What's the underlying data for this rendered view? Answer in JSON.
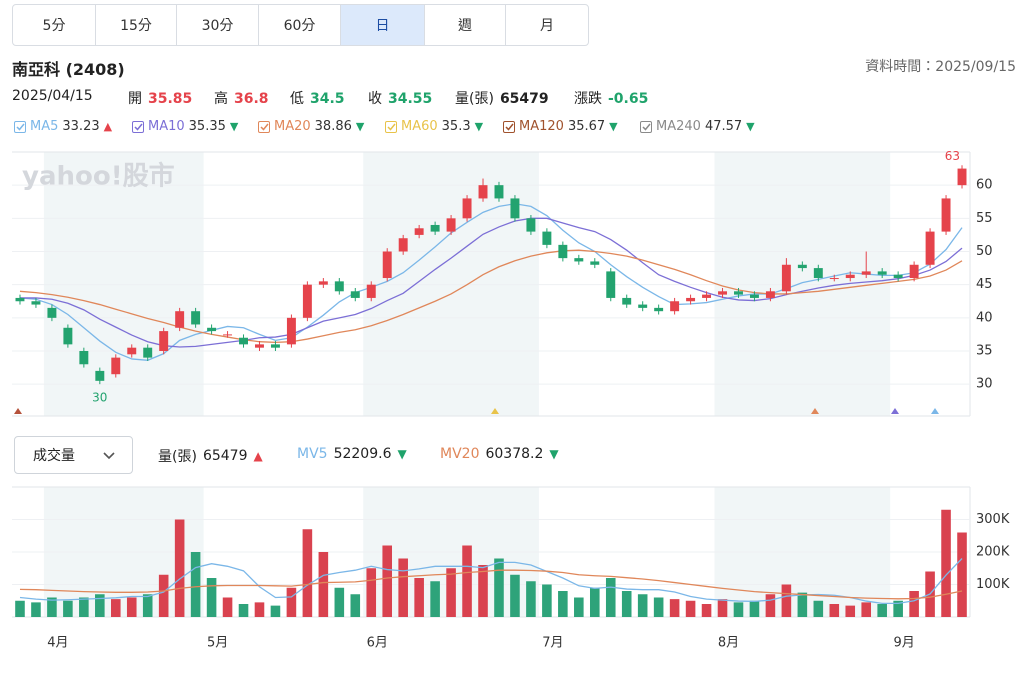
{
  "tabs": [
    {
      "label": "5分"
    },
    {
      "label": "15分"
    },
    {
      "label": "30分"
    },
    {
      "label": "60分"
    },
    {
      "label": "日",
      "active": true
    },
    {
      "label": "週"
    },
    {
      "label": "月"
    }
  ],
  "header": {
    "title": "南亞科 (2408)",
    "data_time": "資料時間：2025/09/15"
  },
  "info": {
    "date": "2025/04/15",
    "items": [
      {
        "label": "開",
        "value": 35.85,
        "color": "#e5434b"
      },
      {
        "label": "高",
        "value": 36.8,
        "color": "#e5434b"
      },
      {
        "label": "低",
        "value": 34.5,
        "color": "#1fa36b"
      },
      {
        "label": "收",
        "value": 34.55,
        "color": "#1fa36b"
      },
      {
        "label": "量(張)",
        "value": 65479,
        "color": "#222222"
      },
      {
        "label": "漲跌",
        "value": -0.65,
        "color": "#1fa36b"
      }
    ]
  },
  "volume_selector": "成交量",
  "chart_data": [
    {
      "type": "candlestick",
      "watermark": "yahoo!股市",
      "up_color": "#e5434b",
      "down_color": "#23a36f",
      "open": [
        43,
        42.5,
        41.5,
        38.5,
        35,
        32,
        31.5,
        34.5,
        35.5,
        35,
        38.5,
        41,
        38.5,
        37.5,
        37,
        35.5,
        36,
        36,
        40,
        45,
        45.5,
        44,
        43,
        46,
        50,
        52.5,
        54,
        53,
        55,
        58,
        60,
        58,
        55,
        53,
        51,
        49,
        48.5,
        47,
        43,
        42,
        41.5,
        41,
        42.5,
        43,
        43.5,
        44,
        43.5,
        43,
        44,
        48,
        47.5,
        46,
        46,
        46.5,
        47,
        46.5,
        46,
        48,
        53,
        60
      ],
      "high": [
        43.5,
        43,
        42,
        39,
        35.5,
        32.5,
        34.5,
        36,
        36,
        38.5,
        41.5,
        41.5,
        39,
        38,
        37.5,
        36.5,
        36.5,
        40.5,
        45.5,
        46,
        46,
        44.5,
        45.5,
        50.5,
        52.5,
        54,
        54.5,
        55.5,
        58.5,
        61,
        60.5,
        58.5,
        55.5,
        53.5,
        51.5,
        49.5,
        49,
        47.5,
        43.5,
        42.5,
        42,
        43,
        43.5,
        44,
        44.5,
        44.5,
        44,
        44.5,
        49,
        48.5,
        48,
        46.5,
        47,
        50,
        47.5,
        47,
        48.5,
        53.5,
        58.5,
        63
      ],
      "low": [
        42,
        41.5,
        39.5,
        35.5,
        32.5,
        30,
        31,
        34,
        33.5,
        34.5,
        38,
        38.5,
        37.5,
        37,
        35.5,
        35,
        35,
        35.5,
        39.5,
        44.5,
        43.5,
        42.5,
        42.5,
        45.5,
        49.5,
        52,
        52.5,
        52.5,
        54.5,
        57.5,
        57.5,
        54.5,
        52.5,
        50.5,
        48.5,
        48,
        47.5,
        42.5,
        41.5,
        41,
        40.5,
        40.5,
        42,
        42.5,
        43,
        43,
        42.5,
        42.5,
        43.5,
        47,
        45.5,
        45.5,
        45.5,
        46,
        46,
        45.5,
        45.5,
        47.5,
        52.5,
        59.5
      ],
      "close": [
        42.5,
        42,
        40,
        36,
        33,
        30.5,
        34,
        35.5,
        34,
        38,
        41,
        39,
        38,
        37.5,
        36,
        36,
        35.5,
        40,
        45,
        45.5,
        44,
        43,
        45,
        50,
        52,
        53.5,
        53,
        55,
        58,
        60,
        58,
        55,
        53,
        51,
        49,
        48.5,
        48,
        43,
        42,
        41.5,
        41,
        42.5,
        43,
        43.5,
        44,
        43.5,
        43,
        44,
        48,
        47.5,
        46,
        46,
        46.5,
        47,
        46.5,
        46,
        48,
        53,
        58,
        62.5
      ],
      "high_label": "63",
      "low_label": "30",
      "ylim": [
        25.2,
        65
      ],
      "yticks": [
        30,
        35,
        40,
        45,
        50,
        55,
        60
      ],
      "grid": true,
      "series": [
        {
          "name": "MA5",
          "color": "#7bb7e8",
          "legend_value": 33.23,
          "trend": "▲",
          "trend_color": "#e5434b",
          "values": [
            43,
            42.8,
            42,
            40.5,
            38.5,
            36.5,
            34.8,
            33.8,
            33.6,
            34.6,
            36.6,
            37.5,
            38.1,
            38.7,
            38.5,
            37.5,
            36.6,
            37,
            38.6,
            40.4,
            42.4,
            43.8,
            44.6,
            45.5,
            46.8,
            48.7,
            50.7,
            52.8,
            54.4,
            55.9,
            56.8,
            57.2,
            56.8,
            55.4,
            53.2,
            51.3,
            50,
            48,
            46.2,
            44.6,
            43.2,
            42,
            42.1,
            42.3,
            42.8,
            43.3,
            43.6,
            43.6,
            44.4,
            45.3,
            45.8,
            46.3,
            46.8,
            46.6,
            46.4,
            46.4,
            46.8,
            48.1,
            50.3,
            53.6
          ]
        },
        {
          "name": "MA10",
          "color": "#7c6fd6",
          "legend_value": 35.35,
          "trend": "▼",
          "trend_color": "#1fa36b",
          "values": [
            43,
            43,
            42.8,
            42.2,
            41.2,
            39.8,
            38.6,
            37.4,
            36.4,
            35.8,
            35.6,
            35.7,
            36,
            36.3,
            36.6,
            37,
            37.1,
            37.5,
            38.5,
            39.5,
            40,
            40.5,
            41.4,
            42.6,
            43.7,
            45.5,
            47.3,
            49,
            50.8,
            52.6,
            53.7,
            54.6,
            55,
            55,
            54.3,
            53.6,
            53,
            51.8,
            50.2,
            48.3,
            46.5,
            45.5,
            44.6,
            43.8,
            43.1,
            42.7,
            42.6,
            42.9,
            43.5,
            44,
            44.5,
            44.9,
            45.2,
            45.4,
            45.6,
            45.9,
            46.4,
            47.2,
            48.5,
            50.5
          ]
        },
        {
          "name": "MA20",
          "color": "#e0875a",
          "legend_value": 38.86,
          "trend": "▼",
          "trend_color": "#1fa36b",
          "values": [
            44,
            43.8,
            43.5,
            43.1,
            42.6,
            42,
            41.3,
            40.6,
            39.9,
            39.3,
            38.6,
            38,
            37.5,
            37.1,
            36.7,
            36.4,
            36.3,
            36.4,
            36.8,
            37.3,
            37.8,
            38.2,
            38.8,
            39.6,
            40.5,
            41.5,
            42.5,
            43.6,
            45,
            46.5,
            47.7,
            48.6,
            49.3,
            49.8,
            50.1,
            50.2,
            50,
            49.7,
            49.3,
            48.7,
            48,
            47.3,
            46.5,
            45.6,
            44.8,
            44.2,
            43.8,
            43.6,
            43.6,
            43.8,
            44,
            44.3,
            44.6,
            44.9,
            45.2,
            45.5,
            45.8,
            46.3,
            47.2,
            48.6
          ]
        },
        {
          "name": "MA60",
          "color": "#e8c34a",
          "legend_value": 35.3,
          "trend": "▼",
          "trend_color": "#1fa36b"
        },
        {
          "name": "MA120",
          "color": "#a0522d",
          "legend_value": 35.67,
          "trend": "▼",
          "trend_color": "#1fa36b"
        },
        {
          "name": "MA240",
          "color": "#8a8a8a",
          "legend_value": 47.57,
          "trend": "▼",
          "trend_color": "#1fa36b"
        }
      ]
    },
    {
      "type": "bar",
      "name": "量(張)",
      "legend_value": 65479,
      "trend": "▲",
      "trend_color": "#e5434b",
      "up_color": "#d9424f",
      "down_color": "#2ea37a",
      "categories": [
        null,
        null,
        "4月",
        null,
        null,
        null,
        null,
        null,
        null,
        null,
        null,
        null,
        "5月",
        null,
        null,
        null,
        null,
        null,
        null,
        null,
        null,
        null,
        "6月",
        null,
        null,
        null,
        null,
        null,
        null,
        null,
        null,
        null,
        null,
        "7月",
        null,
        null,
        null,
        null,
        null,
        null,
        null,
        null,
        null,
        null,
        "8月",
        null,
        null,
        null,
        null,
        null,
        null,
        null,
        null,
        null,
        null,
        "9月",
        null,
        null,
        null,
        null
      ],
      "values": [
        50000,
        45000,
        60000,
        50000,
        60000,
        70000,
        55000,
        60000,
        70000,
        130000,
        300000,
        200000,
        120000,
        60000,
        40000,
        45000,
        35000,
        90000,
        270000,
        200000,
        90000,
        70000,
        150000,
        220000,
        180000,
        120000,
        110000,
        150000,
        220000,
        160000,
        180000,
        130000,
        110000,
        100000,
        80000,
        60000,
        90000,
        120000,
        80000,
        70000,
        60000,
        55000,
        50000,
        40000,
        55000,
        45000,
        50000,
        70000,
        100000,
        75000,
        50000,
        40000,
        35000,
        45000,
        40000,
        50000,
        80000,
        140000,
        330000,
        260000
      ],
      "ylim": [
        0,
        400000
      ],
      "yticks": [
        {
          "value": 100000,
          "label": "100K"
        },
        {
          "value": 200000,
          "label": "200K"
        },
        {
          "value": 300000,
          "label": "300K"
        }
      ],
      "grid": true,
      "series": [
        {
          "name": "MV5",
          "color": "#7bb7e8",
          "legend_value": 52209.6,
          "trend": "▼",
          "trend_color": "#1fa36b",
          "values": [
            60000,
            55000,
            52000,
            53000,
            55000,
            57000,
            59000,
            63000,
            63000,
            77000,
            117000,
            152000,
            164000,
            156000,
            142000,
            93000,
            60000,
            62000,
            98000,
            128000,
            137000,
            144000,
            156000,
            146000,
            142000,
            148000,
            156000,
            156000,
            156000,
            152000,
            168000,
            168000,
            160000,
            140000,
            120000,
            96000,
            88000,
            92000,
            86000,
            84000,
            84000,
            77000,
            63000,
            55000,
            52000,
            49000,
            48000,
            52000,
            64000,
            68000,
            69000,
            67000,
            60000,
            49000,
            42000,
            42000,
            50000,
            71000,
            129000,
            180000
          ]
        },
        {
          "name": "MV20",
          "color": "#e0875a",
          "legend_value": 60378.2,
          "trend": "▼",
          "trend_color": "#1fa36b",
          "values": [
            85000,
            84000,
            82000,
            80000,
            78000,
            77000,
            76000,
            76000,
            77000,
            80000,
            88000,
            93000,
            96000,
            97000,
            97000,
            97000,
            96000,
            95000,
            100000,
            106000,
            107000,
            108000,
            113000,
            120000,
            124000,
            127000,
            130000,
            132000,
            137000,
            140000,
            144000,
            144000,
            143000,
            141000,
            137000,
            130000,
            127000,
            125000,
            121000,
            117000,
            112000,
            106000,
            100000,
            94000,
            88000,
            83000,
            78000,
            75000,
            72000,
            69000,
            66000,
            63000,
            60000,
            58000,
            57000,
            56000,
            57000,
            61000,
            70000,
            80000
          ]
        }
      ]
    }
  ]
}
